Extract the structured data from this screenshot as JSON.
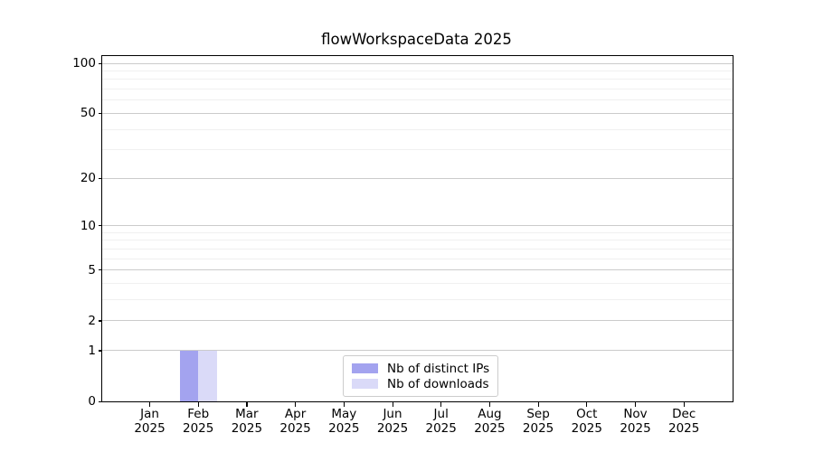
{
  "chart_data": {
    "type": "bar",
    "title": "flowWorkspaceData 2025",
    "months": [
      "Jan",
      "Feb",
      "Mar",
      "Apr",
      "May",
      "Jun",
      "Jul",
      "Aug",
      "Sep",
      "Oct",
      "Nov",
      "Dec"
    ],
    "year": "2025",
    "series": [
      {
        "name": "Nb of distinct IPs",
        "color": "#a3a3ef",
        "values": [
          0,
          1,
          0,
          0,
          0,
          0,
          0,
          0,
          0,
          0,
          0,
          0
        ]
      },
      {
        "name": "Nb of downloads",
        "color": "#dadaf8",
        "values": [
          0,
          1,
          0,
          0,
          0,
          0,
          0,
          0,
          0,
          0,
          0,
          0
        ]
      }
    ],
    "y_scale": "log1p",
    "ylim": [
      0,
      100
    ],
    "y_ticks": [
      0,
      1,
      2,
      5,
      10,
      20,
      50,
      100
    ],
    "y_minor_gridlines": [
      3,
      4,
      6,
      7,
      8,
      9,
      30,
      40,
      60,
      70,
      80,
      90
    ],
    "grid": true,
    "legend": {
      "position": "lower-center",
      "entries": [
        "Nb of distinct IPs",
        "Nb of downloads"
      ]
    },
    "colors": {
      "axis": "#000000",
      "major_grid": "#cbcbcb",
      "minor_grid": "#f0f0f0",
      "background": "#ffffff"
    }
  }
}
